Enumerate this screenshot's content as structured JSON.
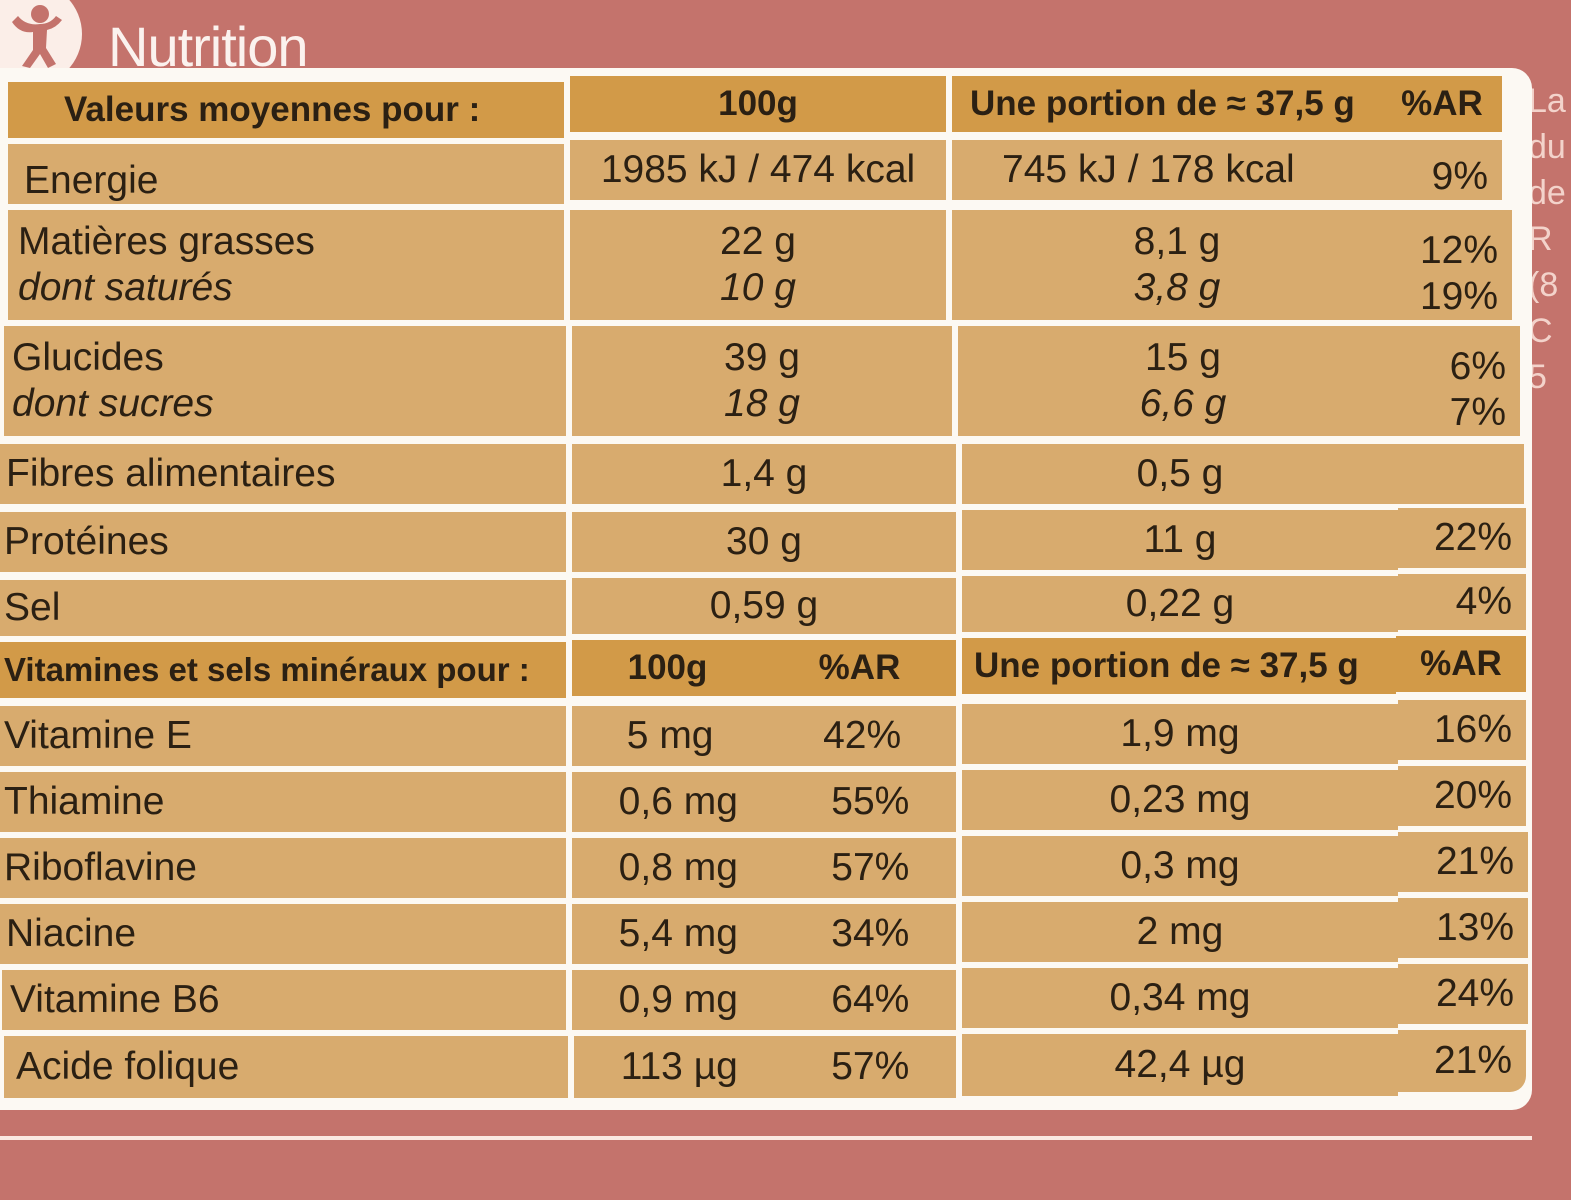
{
  "section_title": "Nutrition",
  "logo_icon": "person-icon",
  "side_text": [
    "La",
    "du",
    "de",
    "R",
    "(8",
    "C",
    "5"
  ],
  "main_table": {
    "headers": {
      "label": "Valeurs moyennes pour :",
      "per100": "100g",
      "portion": "Une portion de ≈ 37,5 g",
      "ar": "%AR"
    },
    "rows": [
      {
        "label": "Energie",
        "per100": "1985 kJ / 474 kcal",
        "portion": "745 kJ / 178 kcal",
        "ar": "9%"
      },
      {
        "label": "Matières grasses",
        "per100": "22 g",
        "portion": "8,1 g",
        "ar": "12%",
        "sub_label": "dont saturés",
        "sub_per100": "10 g",
        "sub_portion": "3,8 g",
        "sub_ar": "19%"
      },
      {
        "label": "Glucides",
        "per100": "39 g",
        "portion": "15 g",
        "ar": "6%",
        "sub_label": "dont sucres",
        "sub_per100": "18 g",
        "sub_portion": "6,6 g",
        "sub_ar": "7%"
      },
      {
        "label": "Fibres alimentaires",
        "per100": "1,4 g",
        "portion": "0,5 g",
        "ar": ""
      },
      {
        "label": "Protéines",
        "per100": "30 g",
        "portion": "11 g",
        "ar": "22%"
      },
      {
        "label": "Sel",
        "per100": "0,59 g",
        "portion": "0,22 g",
        "ar": "4%"
      }
    ]
  },
  "vitamin_table": {
    "headers": {
      "label": "Vitamines et sels minéraux pour :",
      "per100": "100g",
      "ar100": "%AR",
      "portion": "Une portion de ≈ 37,5 g",
      "ar": "%AR"
    },
    "rows": [
      {
        "label": "Vitamine E",
        "per100": "5 mg",
        "ar100": "42%",
        "portion": "1,9 mg",
        "ar": "16%"
      },
      {
        "label": "Thiamine",
        "per100": "0,6 mg",
        "ar100": "55%",
        "portion": "0,23 mg",
        "ar": "20%"
      },
      {
        "label": "Riboflavine",
        "per100": "0,8 mg",
        "ar100": "57%",
        "portion": "0,3 mg",
        "ar": "21%"
      },
      {
        "label": "Niacine",
        "per100": "5,4 mg",
        "ar100": "34%",
        "portion": "2 mg",
        "ar": "13%"
      },
      {
        "label": "Vitamine B6",
        "per100": "0,9 mg",
        "ar100": "64%",
        "portion": "0,34 mg",
        "ar": "24%"
      },
      {
        "label": "Acide folique",
        "per100": "113 µg",
        "ar100": "57%",
        "portion": "42,4 µg",
        "ar": "21%"
      }
    ]
  }
}
